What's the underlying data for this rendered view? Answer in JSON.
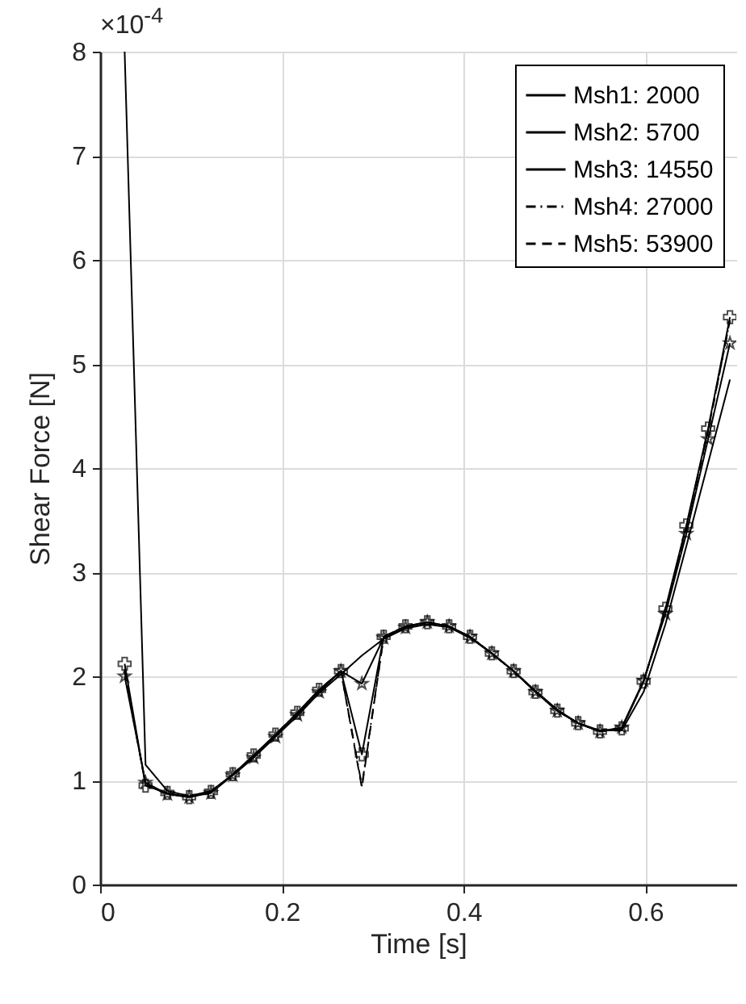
{
  "chart_data": {
    "type": "line",
    "xlabel": "Time [s]",
    "ylabel": "Shear Force [N]",
    "annotations": [
      "×10$^{-4}$"
    ],
    "x": [
      0.027,
      0.05,
      0.074,
      0.098,
      0.122,
      0.146,
      0.169,
      0.193,
      0.217,
      0.241,
      0.265,
      0.288,
      0.312,
      0.336,
      0.36,
      0.384,
      0.407,
      0.431,
      0.455,
      0.479,
      0.503,
      0.526,
      0.55,
      0.574,
      0.598,
      0.622,
      0.645,
      0.669,
      0.693
    ],
    "series": [
      {
        "name": "Msh1: 2000",
        "color": "#000000",
        "marker": "none",
        "line_style": "solid",
        "values": [
          8.0,
          1.15,
          0.9,
          0.85,
          0.9,
          1.05,
          1.22,
          1.42,
          1.62,
          1.84,
          2.02,
          2.2,
          2.36,
          2.46,
          2.5,
          2.47,
          2.37,
          2.22,
          2.05,
          1.86,
          1.68,
          1.55,
          1.48,
          1.48,
          1.85,
          2.5,
          3.25,
          4.05,
          4.85
        ]
      },
      {
        "name": "Msh2: 5700",
        "color": "#000000",
        "marker": "star",
        "line_style": "solid",
        "values": [
          2.0,
          0.98,
          0.87,
          0.84,
          0.88,
          1.05,
          1.22,
          1.42,
          1.63,
          1.85,
          2.05,
          1.93,
          2.37,
          2.47,
          2.52,
          2.48,
          2.38,
          2.22,
          2.05,
          1.85,
          1.67,
          1.55,
          1.47,
          1.51,
          1.96,
          2.6,
          3.37,
          4.28,
          5.2
        ]
      },
      {
        "name": "Msh3: 14550",
        "color": "#000000",
        "marker": "cross",
        "line_style": "solid",
        "values": [
          2.12,
          0.95,
          0.88,
          0.84,
          0.89,
          1.06,
          1.24,
          1.44,
          1.65,
          1.87,
          2.05,
          1.25,
          2.38,
          2.48,
          2.52,
          2.48,
          2.38,
          2.22,
          2.05,
          1.85,
          1.67,
          1.55,
          1.47,
          1.5,
          1.95,
          2.65,
          3.45,
          4.38,
          5.45
        ]
      },
      {
        "name": "Msh4: 27000",
        "color": "#000000",
        "marker": "none",
        "line_style": "dashdot",
        "values": [
          2.05,
          0.96,
          0.87,
          0.84,
          0.89,
          1.06,
          1.24,
          1.44,
          1.65,
          1.87,
          2.05,
          0.95,
          2.38,
          2.48,
          2.52,
          2.48,
          2.38,
          2.22,
          2.05,
          1.85,
          1.67,
          1.55,
          1.47,
          1.5,
          1.95,
          2.63,
          3.43,
          4.36,
          5.42
        ]
      },
      {
        "name": "Msh5: 53900",
        "color": "#000000",
        "marker": "none",
        "line_style": "dashed",
        "values": [
          2.05,
          0.96,
          0.87,
          0.84,
          0.89,
          1.06,
          1.24,
          1.44,
          1.65,
          1.87,
          2.05,
          0.93,
          2.38,
          2.48,
          2.52,
          2.48,
          2.38,
          2.22,
          2.05,
          1.85,
          1.67,
          1.55,
          1.47,
          1.5,
          1.95,
          2.63,
          3.43,
          4.36,
          5.42
        ]
      }
    ],
    "xlim": [
      0,
      0.7
    ],
    "xticks": [
      0,
      0.2,
      0.4,
      0.6
    ],
    "ylim": [
      0,
      8
    ],
    "yticks": [
      0,
      1,
      2,
      3,
      4,
      5,
      6,
      7,
      8
    ],
    "grid": true,
    "legend": "top right"
  }
}
